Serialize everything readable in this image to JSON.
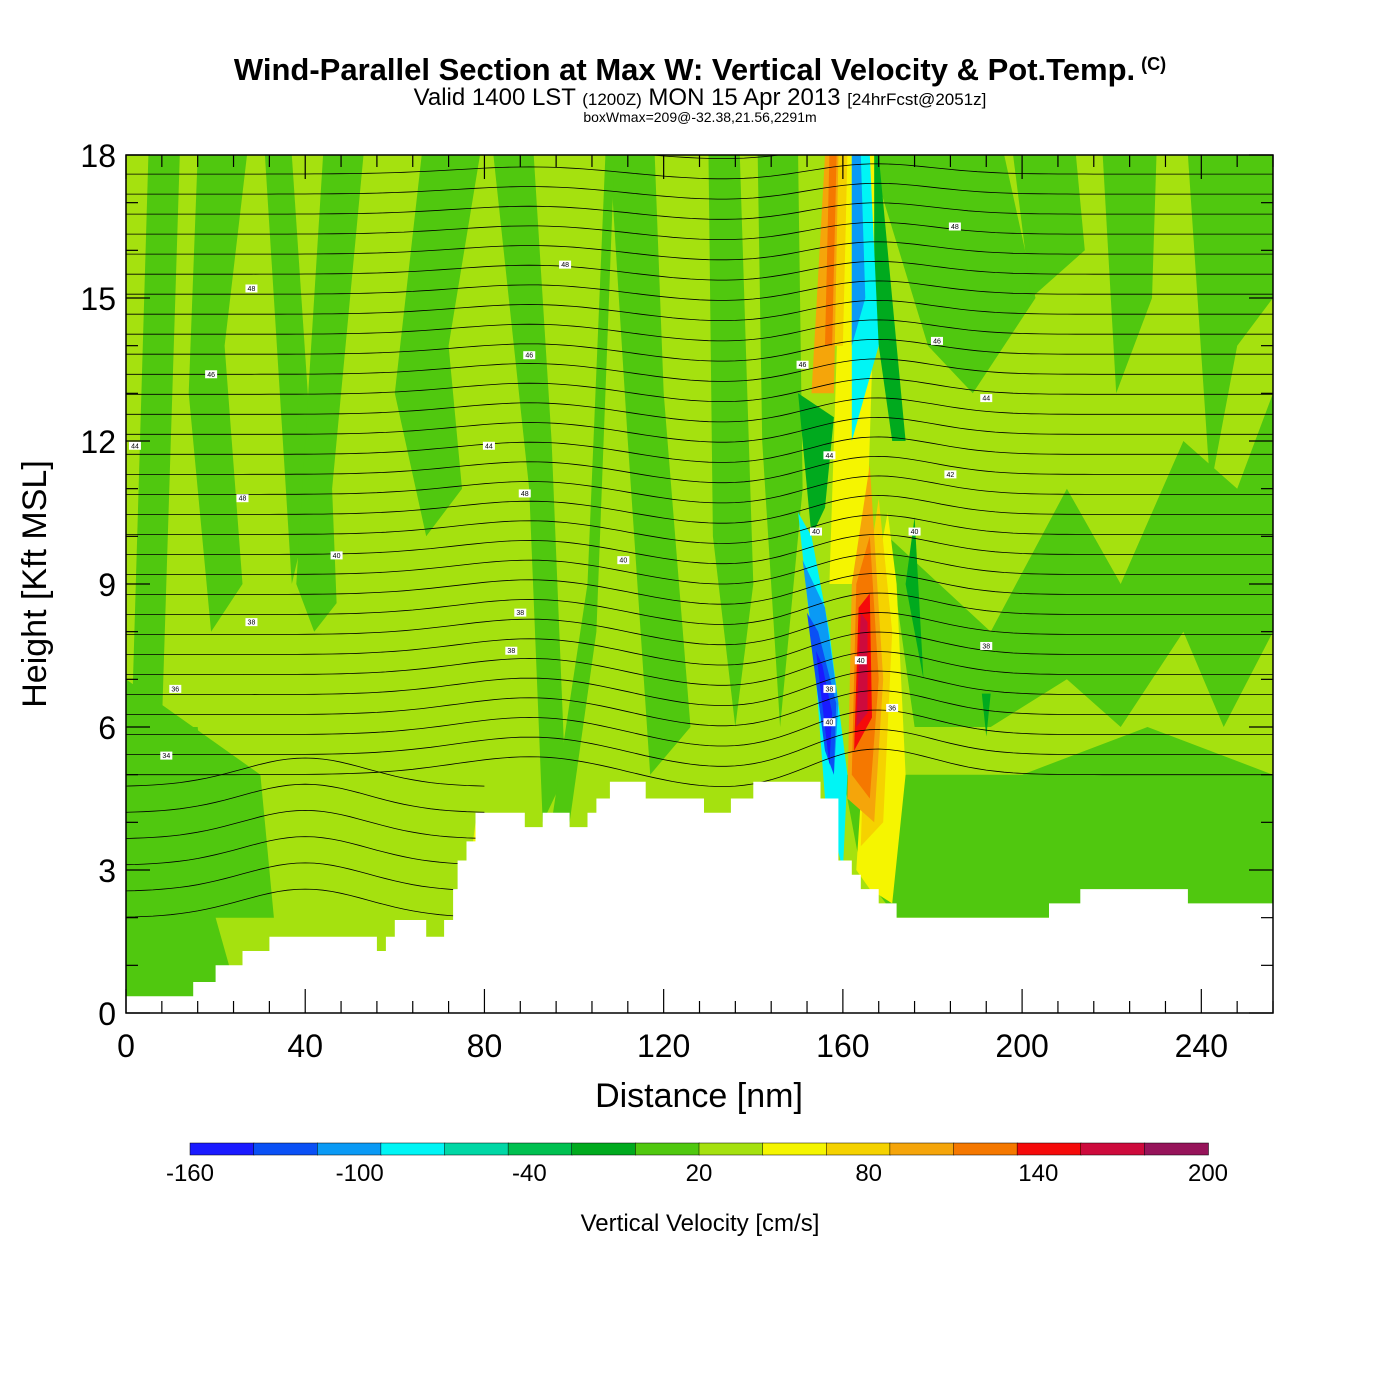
{
  "title": {
    "main": "Wind-Parallel Section at Max W: Vertical Velocity & Pot.Temp.",
    "copyright": "(C)",
    "valid_prefix": "Valid 1400 LST",
    "valid_utc": "(1200Z)",
    "valid_date": "MON 15 Apr 2013",
    "forecast": "[24hrFcst@2051z]",
    "box_wmax": "boxWmax=209@-32.38,21.56,2291m"
  },
  "chart_data": {
    "type": "cross-section",
    "xlabel": "Distance [nm]",
    "ylabel": "Height [Kft MSL]",
    "xlim": [
      0,
      256
    ],
    "ylim": [
      0,
      18
    ],
    "xticks": [
      "0",
      "40",
      "80",
      "120",
      "160",
      "200",
      "240"
    ],
    "yticks": [
      "0",
      "3",
      "6",
      "9",
      "12",
      "15",
      "18"
    ],
    "terrain": [
      [
        0,
        0.35
      ],
      [
        15,
        0.35
      ],
      [
        15,
        0.65
      ],
      [
        20,
        0.65
      ],
      [
        20,
        1.0
      ],
      [
        26,
        1.0
      ],
      [
        26,
        1.3
      ],
      [
        32,
        1.3
      ],
      [
        32,
        1.6
      ],
      [
        56,
        1.6
      ],
      [
        56,
        1.3
      ],
      [
        58,
        1.3
      ],
      [
        58,
        1.6
      ],
      [
        60,
        1.6
      ],
      [
        60,
        1.95
      ],
      [
        67,
        1.95
      ],
      [
        67,
        1.6
      ],
      [
        71,
        1.6
      ],
      [
        71,
        1.95
      ],
      [
        73,
        1.95
      ],
      [
        73,
        2.6
      ],
      [
        74,
        2.6
      ],
      [
        74,
        3.2
      ],
      [
        76,
        3.2
      ],
      [
        76,
        3.6
      ],
      [
        78,
        3.6
      ],
      [
        78,
        4.2
      ],
      [
        89,
        4.2
      ],
      [
        89,
        3.9
      ],
      [
        93,
        3.9
      ],
      [
        93,
        4.2
      ],
      [
        99,
        4.2
      ],
      [
        99,
        3.9
      ],
      [
        103,
        3.9
      ],
      [
        103,
        4.2
      ],
      [
        105,
        4.2
      ],
      [
        105,
        4.5
      ],
      [
        108,
        4.5
      ],
      [
        108,
        4.85
      ],
      [
        116,
        4.85
      ],
      [
        116,
        4.5
      ],
      [
        129,
        4.5
      ],
      [
        129,
        4.2
      ],
      [
        135,
        4.2
      ],
      [
        135,
        4.5
      ],
      [
        140,
        4.5
      ],
      [
        140,
        4.85
      ],
      [
        155,
        4.85
      ],
      [
        155,
        4.5
      ],
      [
        159,
        4.5
      ],
      [
        159,
        3.2
      ],
      [
        162,
        3.2
      ],
      [
        162,
        2.9
      ],
      [
        164,
        2.9
      ],
      [
        164,
        2.6
      ],
      [
        168,
        2.6
      ],
      [
        168,
        2.3
      ],
      [
        172,
        2.3
      ],
      [
        172,
        2.0
      ],
      [
        206,
        2.0
      ],
      [
        206,
        2.3
      ],
      [
        213,
        2.3
      ],
      [
        213,
        2.6
      ],
      [
        237,
        2.6
      ],
      [
        237,
        2.3
      ],
      [
        256,
        2.3
      ]
    ],
    "contour_labels": [
      {
        "x": 2,
        "y": 11.9,
        "text": "44"
      },
      {
        "x": 28,
        "y": 15.2,
        "text": "48"
      },
      {
        "x": 19,
        "y": 13.4,
        "text": "46"
      },
      {
        "x": 26,
        "y": 10.8,
        "text": "48"
      },
      {
        "x": 47,
        "y": 9.6,
        "text": "40"
      },
      {
        "x": 28,
        "y": 8.2,
        "text": "38"
      },
      {
        "x": 11,
        "y": 6.8,
        "text": "36"
      },
      {
        "x": 9,
        "y": 5.4,
        "text": "34"
      },
      {
        "x": 98,
        "y": 15.7,
        "text": "48"
      },
      {
        "x": 90,
        "y": 13.8,
        "text": "46"
      },
      {
        "x": 81,
        "y": 11.9,
        "text": "44"
      },
      {
        "x": 89,
        "y": 10.9,
        "text": "48"
      },
      {
        "x": 111,
        "y": 9.5,
        "text": "40"
      },
      {
        "x": 88,
        "y": 8.4,
        "text": "38"
      },
      {
        "x": 86,
        "y": 7.6,
        "text": "38"
      },
      {
        "x": 151,
        "y": 13.6,
        "text": "46"
      },
      {
        "x": 157,
        "y": 11.7,
        "text": "44"
      },
      {
        "x": 154,
        "y": 10.1,
        "text": "40"
      },
      {
        "x": 164,
        "y": 7.4,
        "text": "40"
      },
      {
        "x": 157,
        "y": 6.8,
        "text": "38"
      },
      {
        "x": 157,
        "y": 6.1,
        "text": "40"
      },
      {
        "x": 171,
        "y": 6.4,
        "text": "36"
      },
      {
        "x": 185,
        "y": 16.5,
        "text": "48"
      },
      {
        "x": 181,
        "y": 14.1,
        "text": "46"
      },
      {
        "x": 192,
        "y": 12.9,
        "text": "44"
      },
      {
        "x": 184,
        "y": 11.3,
        "text": "42"
      },
      {
        "x": 176,
        "y": 10.1,
        "text": "40"
      },
      {
        "x": 192,
        "y": 7.7,
        "text": "38"
      }
    ]
  },
  "colorbar": {
    "colors": [
      "#1a1aff",
      "#0a50f5",
      "#0a9af5",
      "#00f5f5",
      "#00d7a5",
      "#00c050",
      "#00aa1e",
      "#50c80f",
      "#a5e10f",
      "#f5f500",
      "#f5d200",
      "#f5a50a",
      "#f57800",
      "#f50a0a",
      "#cd0a3c",
      "#96145a"
    ],
    "tick_labels": [
      "-160",
      "-100",
      "-40",
      "20",
      "80",
      "140",
      "200"
    ],
    "tick_values": [
      -160,
      -100,
      -40,
      20,
      80,
      140,
      200
    ],
    "vmin": -160,
    "vmax": 200,
    "title": "Vertical Velocity [cm/s]"
  }
}
